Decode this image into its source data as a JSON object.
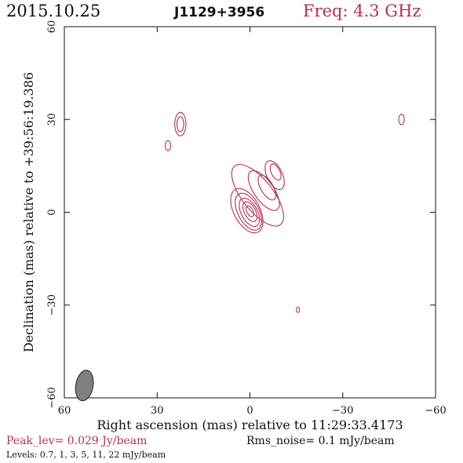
{
  "header": {
    "date": "2015.10.25",
    "source": "J1129+3956",
    "frequency": "Freq: 4.3 GHz"
  },
  "footer": {
    "peak": "Peak_lev=  0.029 Jy/beam",
    "rms": "Rms_noise=  0.1 mJy/beam",
    "levels": "Levels: 0.7,    1,    3,    5,   11,   22 mJy/beam"
  },
  "colors": {
    "contour": "#b0305a",
    "beam": "#808080",
    "axis": "#111111"
  },
  "chart_data": {
    "type": "contour",
    "xlabel": "Right ascension (mas) relative to 11:29:33.4173",
    "ylabel": "Declination (mas) relative to +39:56:19.386",
    "xlim": [
      60,
      -60
    ],
    "ylim": [
      -60,
      60
    ],
    "x_ticks": [
      60,
      30,
      0,
      -30,
      -60
    ],
    "y_ticks": [
      -60,
      -30,
      0,
      30,
      60
    ],
    "x_tick_labels": [
      "60",
      "30",
      "0",
      "−30",
      "−60"
    ],
    "y_tick_labels": [
      "−60",
      "−30",
      "0",
      "30",
      "60"
    ],
    "levels_mJy_per_beam": [
      0.7,
      1,
      3,
      5,
      11,
      22
    ],
    "peak_Jy_per_beam": 0.029,
    "rms_noise_mJy_per_beam": 0.1,
    "beam": {
      "x": 53.5,
      "y": -56,
      "major": 5.0,
      "minor": 2.8,
      "pa_deg": 10
    },
    "components": [
      {
        "name": "core",
        "contours": [
          {
            "x": 1.0,
            "y": 0.5,
            "rx": 4.2,
            "ry": 7.8,
            "angle": -28
          },
          {
            "x": 0.5,
            "y": 0.2,
            "rx": 3.4,
            "ry": 6.5,
            "angle": -28
          },
          {
            "x": 0.2,
            "y": 0.0,
            "rx": 2.6,
            "ry": 5.0,
            "angle": -28
          },
          {
            "x": 0.0,
            "y": 0.2,
            "rx": 1.8,
            "ry": 3.5,
            "angle": -28
          },
          {
            "x": 0.0,
            "y": 0.3,
            "rx": 1.0,
            "ry": 1.9,
            "angle": -28
          }
        ]
      },
      {
        "name": "jet",
        "contours": [
          {
            "x": -2.5,
            "y": 5.5,
            "rx": 5.0,
            "ry": 12.0,
            "angle": -38
          },
          {
            "x": -4.5,
            "y": 7.0,
            "rx": 3.2,
            "ry": 7.5,
            "angle": -35
          },
          {
            "x": -5.5,
            "y": 8.0,
            "rx": 2.0,
            "ry": 4.5,
            "angle": -30
          }
        ]
      },
      {
        "name": "jet-tip",
        "contours": [
          {
            "x": -8.0,
            "y": 12.0,
            "rx": 2.5,
            "ry": 5.0,
            "angle": -25
          },
          {
            "x": -8.3,
            "y": 13.0,
            "rx": 1.4,
            "ry": 2.8,
            "angle": -25
          }
        ]
      },
      {
        "name": "blob-a",
        "contours": [
          {
            "x": 22.5,
            "y": 28.5,
            "rx": 1.8,
            "ry": 3.8,
            "angle": 0
          },
          {
            "x": 22.5,
            "y": 28.5,
            "rx": 1.1,
            "ry": 2.4,
            "angle": 0
          }
        ]
      },
      {
        "name": "blob-b",
        "contours": [
          {
            "x": 26.5,
            "y": 21.5,
            "rx": 0.9,
            "ry": 1.6,
            "angle": 0
          }
        ]
      },
      {
        "name": "blob-c",
        "contours": [
          {
            "x": -49.0,
            "y": 30.0,
            "rx": 0.9,
            "ry": 1.7,
            "angle": 0
          }
        ]
      },
      {
        "name": "blob-d",
        "contours": [
          {
            "x": -15.5,
            "y": -31.5,
            "rx": 0.5,
            "ry": 0.9,
            "angle": 0
          }
        ]
      }
    ]
  }
}
